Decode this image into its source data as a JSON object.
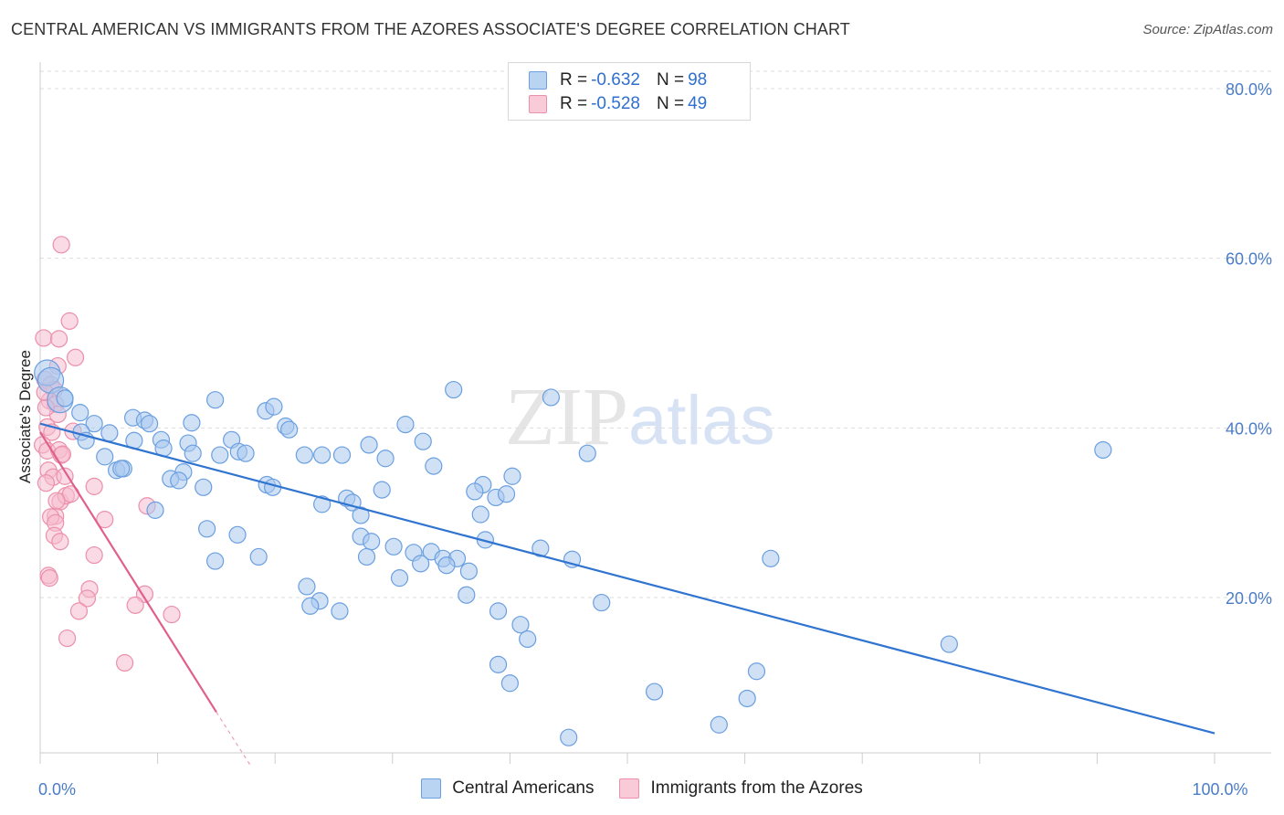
{
  "header": {
    "title": "CENTRAL AMERICAN VS IMMIGRANTS FROM THE AZORES ASSOCIATE'S DEGREE CORRELATION CHART",
    "source": "Source: ZipAtlas.com"
  },
  "watermark": {
    "zip": "ZIP",
    "atlas": "atlas"
  },
  "legend": {
    "rows": [
      {
        "r_label": "R = ",
        "r_value": "-0.632",
        "n_label": "N = ",
        "n_value": "98"
      },
      {
        "r_label": "R = ",
        "r_value": "-0.528",
        "n_label": "N = ",
        "n_value": "49"
      }
    ]
  },
  "bottom_legend": {
    "series1": "Central Americans",
    "series2": "Immigrants from the Azores"
  },
  "colors": {
    "blue_fill": "#a9c8ef",
    "blue_stroke": "#6a9fe0",
    "blue_line": "#2f74d0",
    "pink_fill": "#f6bccd",
    "pink_stroke": "#ec8fab",
    "pink_line": "#e0608c",
    "grid": "#dddddd",
    "tick_label": "#4a7cc7"
  },
  "chart_data": {
    "type": "scatter",
    "title": "CENTRAL AMERICAN VS IMMIGRANTS FROM THE AZORES ASSOCIATE'S DEGREE CORRELATION CHART",
    "xlabel": "",
    "ylabel": "Associate's Degree",
    "xlim": [
      0,
      100
    ],
    "ylim": [
      0,
      85
    ],
    "y_ticks": [
      {
        "value": 20,
        "label": "20.0%"
      },
      {
        "value": 40,
        "label": "40.0%"
      },
      {
        "value": 60,
        "label": "60.0%"
      },
      {
        "value": 80,
        "label": "80.0%"
      }
    ],
    "x_tick_labels": [
      {
        "value": 0,
        "label": "0.0%"
      },
      {
        "value": 100,
        "label": "100.0%"
      }
    ],
    "x_minor_ticks": [
      0,
      10,
      20,
      30,
      40,
      50,
      60,
      70,
      80,
      90,
      100
    ],
    "grid": true,
    "series": [
      {
        "name": "Central Americans",
        "color": "blue",
        "trend": {
          "x0": 0,
          "y0": 40.5,
          "x1": 100,
          "y1": 4
        },
        "points": [
          [
            0.6,
            46.5
          ],
          [
            0.9,
            45.6
          ],
          [
            1.7,
            43.3
          ],
          [
            2.1,
            43.5
          ],
          [
            3.4,
            41.8
          ],
          [
            4.6,
            40.5
          ],
          [
            3.5,
            39.5
          ],
          [
            5.9,
            39.4
          ],
          [
            3.9,
            38.5
          ],
          [
            7.9,
            41.2
          ],
          [
            8.9,
            40.9
          ],
          [
            9.3,
            40.5
          ],
          [
            12.9,
            40.6
          ],
          [
            14.9,
            43.3
          ],
          [
            19.2,
            42.0
          ],
          [
            19.9,
            42.5
          ],
          [
            20.9,
            40.2
          ],
          [
            21.2,
            39.8
          ],
          [
            16.3,
            38.6
          ],
          [
            12.6,
            38.2
          ],
          [
            10.3,
            38.6
          ],
          [
            8.0,
            38.5
          ],
          [
            10.5,
            37.6
          ],
          [
            13.0,
            37.0
          ],
          [
            16.9,
            37.2
          ],
          [
            17.5,
            37.0
          ],
          [
            15.3,
            36.8
          ],
          [
            22.5,
            36.8
          ],
          [
            24.0,
            36.8
          ],
          [
            25.7,
            36.8
          ],
          [
            28.0,
            38.0
          ],
          [
            29.4,
            36.4
          ],
          [
            31.1,
            40.4
          ],
          [
            32.6,
            38.4
          ],
          [
            33.5,
            35.5
          ],
          [
            5.5,
            36.6
          ],
          [
            6.5,
            35.0
          ],
          [
            7.1,
            35.2
          ],
          [
            6.9,
            35.2
          ],
          [
            12.2,
            34.8
          ],
          [
            11.1,
            34.0
          ],
          [
            11.8,
            33.8
          ],
          [
            13.9,
            33.0
          ],
          [
            19.3,
            33.3
          ],
          [
            19.8,
            33.0
          ],
          [
            29.1,
            32.7
          ],
          [
            26.1,
            31.7
          ],
          [
            26.6,
            31.2
          ],
          [
            24.0,
            31.0
          ],
          [
            27.3,
            29.7
          ],
          [
            9.8,
            30.3
          ],
          [
            14.2,
            28.1
          ],
          [
            16.8,
            27.4
          ],
          [
            27.3,
            27.2
          ],
          [
            28.2,
            26.6
          ],
          [
            30.1,
            26.0
          ],
          [
            31.8,
            25.3
          ],
          [
            33.3,
            25.4
          ],
          [
            34.3,
            24.6
          ],
          [
            35.5,
            24.6
          ],
          [
            32.4,
            24.0
          ],
          [
            34.6,
            23.8
          ],
          [
            36.5,
            23.1
          ],
          [
            14.9,
            24.3
          ],
          [
            18.6,
            24.8
          ],
          [
            27.8,
            24.8
          ],
          [
            30.6,
            22.3
          ],
          [
            22.7,
            21.3
          ],
          [
            23.8,
            19.6
          ],
          [
            23.0,
            19.0
          ],
          [
            25.5,
            18.4
          ],
          [
            36.3,
            20.3
          ],
          [
            37.7,
            33.3
          ],
          [
            37.5,
            29.8
          ],
          [
            37.9,
            26.8
          ],
          [
            38.8,
            31.8
          ],
          [
            39.7,
            32.2
          ],
          [
            40.2,
            34.3
          ],
          [
            39.0,
            18.4
          ],
          [
            40.9,
            16.8
          ],
          [
            41.5,
            15.1
          ],
          [
            39.0,
            12.1
          ],
          [
            40.0,
            9.9
          ],
          [
            42.6,
            25.8
          ],
          [
            45.3,
            24.5
          ],
          [
            47.8,
            19.4
          ],
          [
            43.5,
            43.6
          ],
          [
            46.6,
            37.0
          ],
          [
            35.2,
            44.5
          ],
          [
            62.2,
            24.6
          ],
          [
            90.5,
            37.4
          ],
          [
            77.4,
            14.5
          ],
          [
            61.0,
            11.3
          ],
          [
            60.2,
            8.1
          ],
          [
            52.3,
            8.9
          ],
          [
            57.8,
            5.0
          ],
          [
            45.0,
            3.5
          ],
          [
            37.0,
            32.5
          ]
        ]
      },
      {
        "name": "Immigrants from the Azores",
        "color": "pink",
        "trend": {
          "x0": 0,
          "y0": 39.5,
          "x1": 15,
          "y1": 6.5,
          "dash_to_x": 18,
          "dash_to_y": 0
        },
        "points": [
          [
            0.3,
            50.6
          ],
          [
            1.6,
            50.5
          ],
          [
            2.5,
            52.6
          ],
          [
            3.0,
            48.3
          ],
          [
            1.5,
            47.3
          ],
          [
            0.4,
            45.7
          ],
          [
            0.9,
            45.1
          ],
          [
            1.2,
            44.5
          ],
          [
            0.8,
            43.2
          ],
          [
            1.3,
            42.8
          ],
          [
            1.5,
            41.6
          ],
          [
            0.5,
            42.4
          ],
          [
            0.6,
            40.1
          ],
          [
            1.0,
            39.5
          ],
          [
            2.8,
            39.6
          ],
          [
            0.2,
            38.0
          ],
          [
            0.6,
            37.3
          ],
          [
            1.6,
            37.4
          ],
          [
            1.8,
            36.8
          ],
          [
            0.7,
            35.0
          ],
          [
            1.1,
            34.2
          ],
          [
            2.1,
            34.3
          ],
          [
            0.5,
            33.5
          ],
          [
            4.6,
            33.1
          ],
          [
            1.7,
            31.3
          ],
          [
            2.2,
            32.0
          ],
          [
            2.6,
            32.2
          ],
          [
            1.3,
            29.6
          ],
          [
            0.9,
            29.5
          ],
          [
            1.3,
            28.8
          ],
          [
            5.5,
            29.2
          ],
          [
            1.2,
            27.3
          ],
          [
            1.7,
            26.6
          ],
          [
            4.6,
            25.0
          ],
          [
            0.7,
            22.6
          ],
          [
            0.8,
            22.3
          ],
          [
            4.2,
            21.0
          ],
          [
            4.0,
            19.9
          ],
          [
            8.9,
            20.4
          ],
          [
            3.3,
            18.4
          ],
          [
            8.1,
            19.1
          ],
          [
            11.2,
            18.0
          ],
          [
            2.3,
            15.2
          ],
          [
            7.2,
            12.3
          ],
          [
            1.8,
            61.6
          ],
          [
            9.1,
            30.8
          ],
          [
            0.4,
            44.2
          ],
          [
            1.9,
            36.9
          ],
          [
            1.4,
            31.4
          ]
        ]
      }
    ]
  }
}
